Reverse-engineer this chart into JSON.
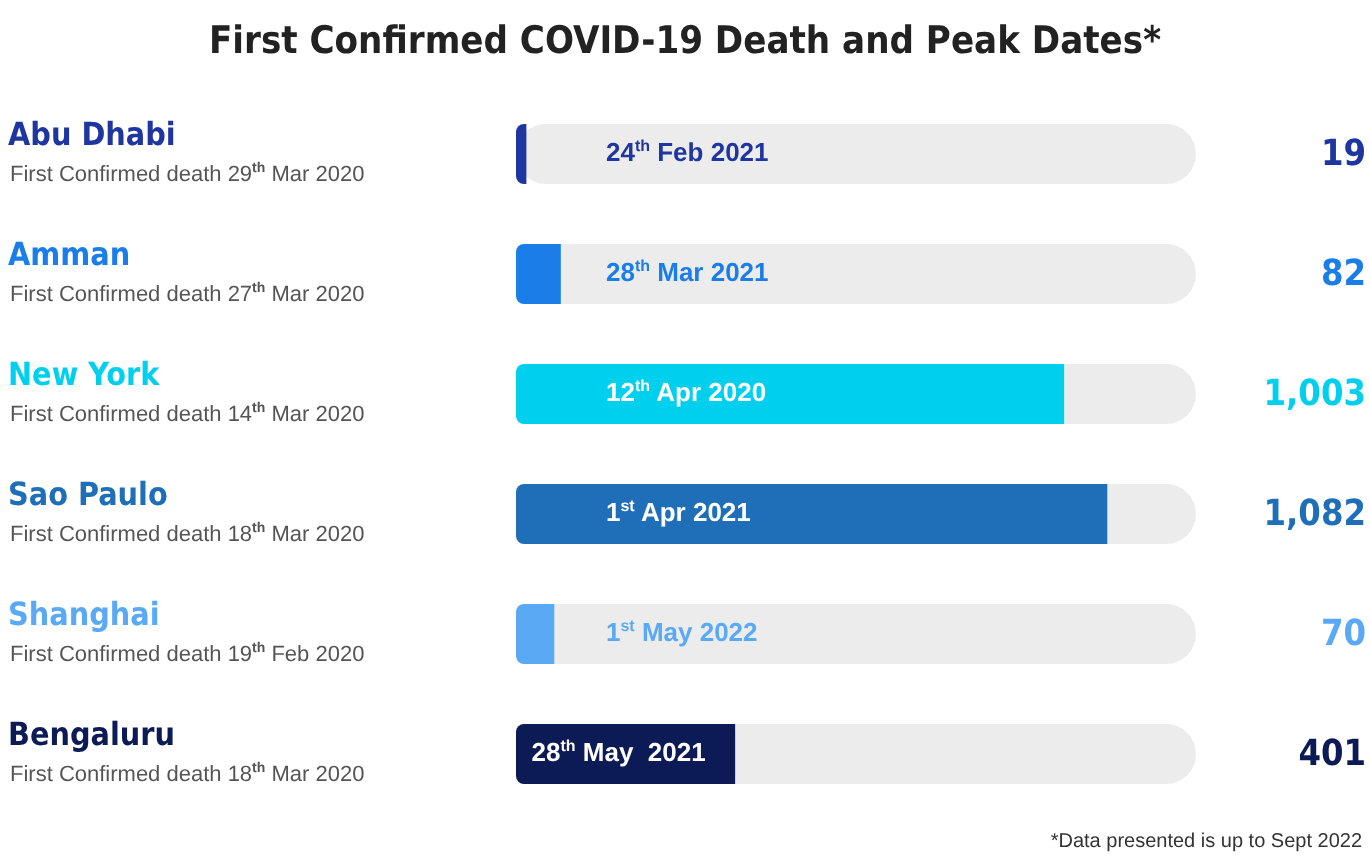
{
  "chart_data": {
    "type": "bar",
    "orientation": "horizontal",
    "title": "First Confirmed COVID-19 Death and Peak Dates*",
    "categories": [
      "Abu Dhabi",
      "Amman",
      "New York",
      "Sao Paulo",
      "Shanghai",
      "Bengaluru"
    ],
    "values": [
      19,
      82,
      1003,
      1082,
      70,
      401
    ],
    "value_labels": [
      "19",
      "82",
      "1,003",
      "1,082",
      "70",
      "401"
    ],
    "colors": [
      "#1f35a0",
      "#1a7de8",
      "#00d0ee",
      "#1f6fb8",
      "#5aa9f5",
      "#0c1a55"
    ],
    "annotations": [
      "First Confirmed death 29$^{th}$ Mar 2020",
      "First Confirmed death 27$^{th}$ Mar 2020",
      "First Confirmed death 14$^{th}$ Mar 2020",
      "First Confirmed death 18$^{th}$ Mar 2020",
      "First Confirmed death 19$^{th}$ Feb 2020",
      "First Confirmed death 18$^{th}$ Mar 2020",
      "24$^{th}$ Feb 2021",
      "28$^{th}$ Mar 2021",
      "12$^{th}$ Apr 2020",
      "1$^{st}$ Apr 2021",
      "1$^{st}$ May 2022",
      "28$^{th}$ May  2021",
      "*Data presented is up to Sept 2022"
    ]
  }
}
